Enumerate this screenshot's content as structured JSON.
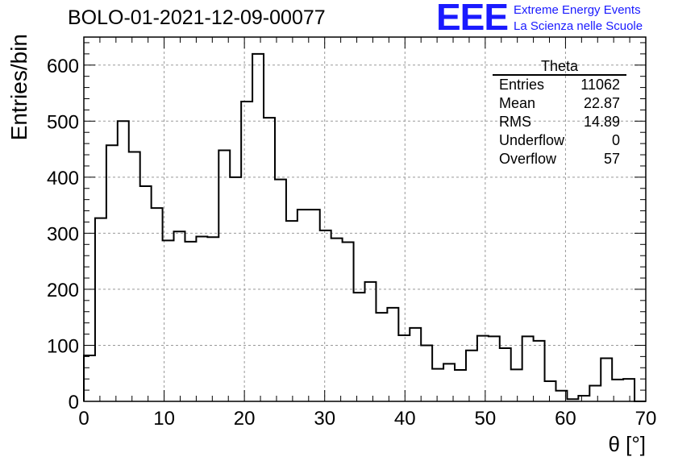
{
  "header": {
    "title": "BOLO-01-2021-12-09-00077",
    "logo_text": "EEE",
    "logo_line1": "Extreme Energy Events",
    "logo_line2": "La Scienza nelle Scuole",
    "logo_color": "#1a1aff"
  },
  "stats": {
    "name": "Theta",
    "rows": [
      {
        "label": "Entries",
        "value": "11062"
      },
      {
        "label": "Mean",
        "value": "22.87"
      },
      {
        "label": "RMS",
        "value": "14.89"
      },
      {
        "label": "Underflow",
        "value": "0"
      },
      {
        "label": "Overflow",
        "value": "57"
      }
    ]
  },
  "chart_data": {
    "type": "bar",
    "style": "histogram-step",
    "title": "BOLO-01-2021-12-09-00077",
    "xlabel": "θ [°]",
    "ylabel": "Entries/bin",
    "xlim": [
      0,
      70
    ],
    "ylim": [
      0,
      650
    ],
    "grid": true,
    "bin_width": 1.4,
    "bin_edges_start": 0,
    "values": [
      82,
      327,
      457,
      500,
      445,
      384,
      345,
      287,
      303,
      285,
      294,
      293,
      448,
      400,
      535,
      620,
      506,
      396,
      322,
      342,
      342,
      305,
      291,
      284,
      194,
      213,
      158,
      167,
      118,
      131,
      100,
      58,
      67,
      56,
      91,
      117,
      116,
      95,
      57,
      116,
      108,
      36,
      19,
      4,
      10,
      28,
      77,
      39,
      40,
      0
    ],
    "x_ticks": [
      0,
      10,
      20,
      30,
      40,
      50,
      60,
      70
    ],
    "y_ticks": [
      0,
      100,
      200,
      300,
      400,
      500,
      600
    ],
    "line_color": "#000000",
    "grid_color": "#999999"
  }
}
